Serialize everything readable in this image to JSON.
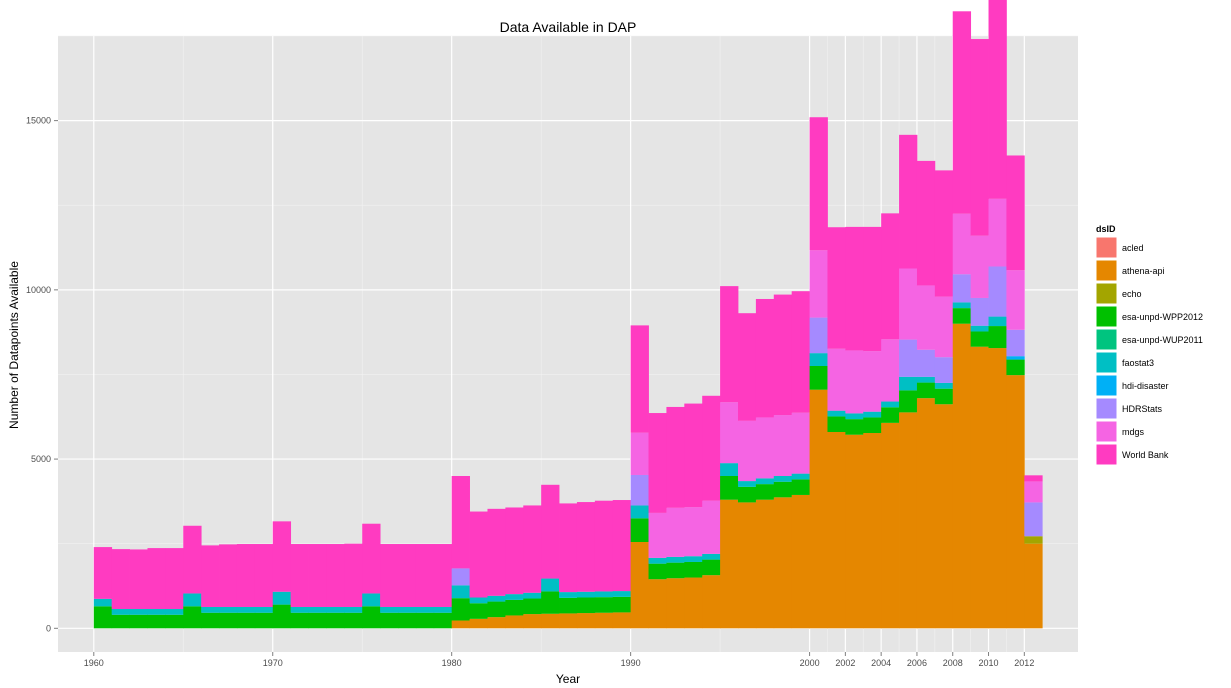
{
  "chart_data": {
    "type": "bar",
    "stacked": true,
    "title": "Data Available in DAP",
    "xlabel": "Year",
    "ylabel": "Number of Datapoints Available",
    "xlim": [
      1958,
      2015
    ],
    "ylim": [
      -700,
      17500
    ],
    "x_ticks": [
      "1960",
      "1970",
      "1980",
      "1990",
      "2000",
      "2002",
      "2004",
      "2006",
      "2008",
      "2010",
      "2012"
    ],
    "y_ticks": [
      "0",
      "5000",
      "10000",
      "15000"
    ],
    "grid": true,
    "panel_background": "#e5e5e5",
    "legend": {
      "title": "dsID",
      "placement": "right",
      "entries": [
        "acled",
        "athena-api",
        "echo",
        "esa-unpd-WPP2012",
        "esa-unpd-WUP2011",
        "faostat3",
        "hdi-disaster",
        "HDRStats",
        "mdgs",
        "World Bank"
      ],
      "colors": [
        "#f8766d",
        "#e58700",
        "#a3a500",
        "#00c000",
        "#00c47f",
        "#00bfc4",
        "#00b0f6",
        "#a58aff",
        "#f564e3",
        "#ff3bc1"
      ]
    },
    "x": [
      1960,
      1961,
      1962,
      1963,
      1964,
      1965,
      1966,
      1967,
      1968,
      1969,
      1970,
      1971,
      1972,
      1973,
      1974,
      1975,
      1976,
      1977,
      1978,
      1979,
      1980,
      1981,
      1982,
      1983,
      1984,
      1985,
      1986,
      1987,
      1988,
      1989,
      1990,
      1991,
      1992,
      1993,
      1994,
      1995,
      1996,
      1997,
      1998,
      1999,
      2000,
      2001,
      2002,
      2003,
      2004,
      2005,
      2006,
      2007,
      2008,
      2009,
      2010,
      2011,
      2012
    ],
    "series": [
      {
        "name": "acled",
        "values": [
          0,
          0,
          0,
          0,
          0,
          0,
          0,
          0,
          0,
          0,
          0,
          0,
          0,
          0,
          0,
          0,
          0,
          0,
          0,
          0,
          0,
          0,
          0,
          0,
          0,
          0,
          0,
          0,
          0,
          0,
          0,
          0,
          0,
          0,
          0,
          0,
          0,
          0,
          0,
          0,
          0,
          0,
          0,
          0,
          0,
          0,
          0,
          0,
          0,
          0,
          0,
          0,
          0
        ]
      },
      {
        "name": "athena-api",
        "values": [
          0,
          0,
          0,
          0,
          0,
          0,
          0,
          0,
          0,
          0,
          0,
          0,
          0,
          0,
          0,
          0,
          0,
          0,
          0,
          0,
          230,
          280,
          330,
          380,
          420,
          430,
          440,
          450,
          460,
          470,
          2550,
          1450,
          1480,
          1500,
          1570,
          3800,
          3720,
          3800,
          3870,
          3940,
          7050,
          5800,
          5720,
          5770,
          6070,
          6380,
          6800,
          6620,
          9000,
          8320,
          8280,
          7480,
          2500
        ]
      },
      {
        "name": "echo",
        "values": [
          0,
          0,
          0,
          0,
          0,
          0,
          0,
          0,
          0,
          0,
          0,
          0,
          0,
          0,
          0,
          0,
          0,
          0,
          0,
          0,
          0,
          0,
          0,
          0,
          0,
          0,
          0,
          0,
          0,
          0,
          0,
          0,
          0,
          0,
          0,
          0,
          0,
          0,
          0,
          0,
          0,
          0,
          0,
          0,
          0,
          0,
          0,
          0,
          0,
          0,
          0,
          0,
          220
        ]
      },
      {
        "name": "esa-unpd-WPP2012",
        "values": [
          650,
          400,
          400,
          400,
          400,
          650,
          460,
          460,
          460,
          460,
          700,
          460,
          460,
          460,
          460,
          650,
          460,
          460,
          460,
          460,
          660,
          460,
          460,
          460,
          460,
          660,
          460,
          460,
          460,
          460,
          700,
          460,
          460,
          460,
          460,
          700,
          460,
          460,
          460,
          460,
          700,
          460,
          460,
          460,
          460,
          650,
          460,
          460,
          460,
          450,
          650,
          460,
          0
        ]
      },
      {
        "name": "esa-unpd-WUP2011",
        "values": [
          0,
          0,
          0,
          0,
          0,
          0,
          0,
          0,
          0,
          0,
          0,
          0,
          0,
          0,
          0,
          0,
          0,
          0,
          0,
          0,
          0,
          0,
          0,
          0,
          0,
          0,
          0,
          0,
          0,
          0,
          0,
          0,
          0,
          0,
          0,
          0,
          0,
          0,
          0,
          0,
          0,
          0,
          0,
          0,
          0,
          0,
          0,
          0,
          0,
          0,
          0,
          0,
          0
        ]
      },
      {
        "name": "faostat3",
        "values": [
          220,
          170,
          170,
          170,
          170,
          380,
          170,
          170,
          170,
          170,
          380,
          170,
          170,
          170,
          170,
          380,
          170,
          170,
          170,
          170,
          380,
          170,
          170,
          170,
          170,
          380,
          170,
          170,
          170,
          170,
          380,
          170,
          170,
          170,
          170,
          380,
          170,
          170,
          170,
          170,
          380,
          170,
          170,
          170,
          170,
          400,
          170,
          170,
          170,
          170,
          280,
          0,
          0
        ]
      },
      {
        "name": "hdi-disaster",
        "values": [
          0,
          0,
          0,
          0,
          0,
          0,
          0,
          0,
          0,
          0,
          0,
          0,
          0,
          0,
          0,
          0,
          0,
          0,
          0,
          0,
          0,
          0,
          0,
          0,
          0,
          0,
          0,
          0,
          0,
          0,
          0,
          0,
          0,
          0,
          0,
          0,
          0,
          0,
          0,
          0,
          0,
          0,
          0,
          0,
          0,
          0,
          0,
          0,
          0,
          0,
          0,
          100,
          0
        ]
      },
      {
        "name": "HDRStats",
        "values": [
          0,
          0,
          0,
          0,
          0,
          0,
          0,
          0,
          0,
          0,
          0,
          0,
          0,
          0,
          0,
          0,
          0,
          0,
          0,
          0,
          500,
          0,
          0,
          0,
          0,
          0,
          0,
          0,
          0,
          0,
          900,
          0,
          0,
          0,
          0,
          0,
          0,
          0,
          0,
          0,
          1050,
          0,
          0,
          0,
          0,
          1100,
          800,
          760,
          830,
          820,
          1480,
          780,
          1000
        ]
      },
      {
        "name": "mdgs",
        "values": [
          0,
          0,
          0,
          0,
          0,
          0,
          0,
          0,
          0,
          0,
          0,
          0,
          0,
          0,
          0,
          0,
          0,
          0,
          0,
          0,
          0,
          0,
          0,
          0,
          0,
          0,
          0,
          0,
          0,
          0,
          1250,
          1330,
          1450,
          1450,
          1570,
          1800,
          1780,
          1800,
          1800,
          1800,
          1990,
          1830,
          1860,
          1790,
          1840,
          2100,
          1900,
          1790,
          1790,
          1840,
          2000,
          1760,
          620
        ]
      },
      {
        "name": "World Bank",
        "values": [
          1530,
          1770,
          1760,
          1800,
          1800,
          2000,
          1820,
          1850,
          1860,
          1860,
          2080,
          1860,
          1860,
          1860,
          1870,
          2060,
          1860,
          1860,
          1860,
          1860,
          2730,
          2540,
          2570,
          2560,
          2580,
          2770,
          2620,
          2650,
          2680,
          2690,
          3170,
          2950,
          2980,
          3060,
          3100,
          3430,
          3180,
          3500,
          3560,
          3590,
          3930,
          3590,
          3650,
          3670,
          3720,
          3950,
          3680,
          3730,
          5980,
          5810,
          5950,
          3390,
          180
        ]
      }
    ]
  }
}
